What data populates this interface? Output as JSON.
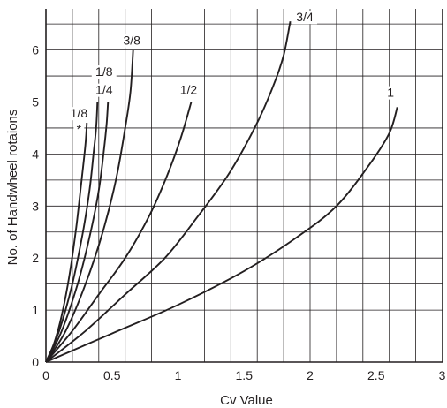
{
  "chart_data": {
    "type": "line",
    "xlabel": "Cv Value",
    "ylabel": "No. of Handwheel rotaions",
    "xlim": [
      0,
      3
    ],
    "ylim": [
      0,
      6.7
    ],
    "x_ticks": [
      "0",
      "0.5",
      "1",
      "1.5",
      "2",
      "2.5",
      "3"
    ],
    "y_ticks": [
      "0",
      "1",
      "2",
      "3",
      "4",
      "5",
      "6"
    ],
    "grid": true,
    "series": [
      {
        "name": "1/8 *",
        "points": [
          [
            0,
            0
          ],
          [
            0.06,
            0.35
          ],
          [
            0.12,
            0.9
          ],
          [
            0.18,
            1.7
          ],
          [
            0.23,
            2.6
          ],
          [
            0.27,
            3.5
          ],
          [
            0.3,
            4.2
          ],
          [
            0.31,
            4.6
          ]
        ]
      },
      {
        "name": "1/8",
        "points": [
          [
            0,
            0
          ],
          [
            0.1,
            0.6
          ],
          [
            0.2,
            1.5
          ],
          [
            0.28,
            2.5
          ],
          [
            0.33,
            3.3
          ],
          [
            0.36,
            4.0
          ],
          [
            0.38,
            4.5
          ],
          [
            0.39,
            5.0
          ]
        ]
      },
      {
        "name": "1/4",
        "points": [
          [
            0,
            0
          ],
          [
            0.12,
            0.6
          ],
          [
            0.24,
            1.5
          ],
          [
            0.33,
            2.4
          ],
          [
            0.4,
            3.3
          ],
          [
            0.44,
            4.1
          ],
          [
            0.46,
            4.6
          ],
          [
            0.47,
            5.0
          ]
        ]
      },
      {
        "name": "3/8",
        "points": [
          [
            0,
            0
          ],
          [
            0.15,
            0.6
          ],
          [
            0.3,
            1.5
          ],
          [
            0.43,
            2.5
          ],
          [
            0.53,
            3.5
          ],
          [
            0.6,
            4.5
          ],
          [
            0.64,
            5.2
          ],
          [
            0.66,
            6.0
          ]
        ]
      },
      {
        "name": "1/2",
        "points": [
          [
            0,
            0
          ],
          [
            0.2,
            0.6
          ],
          [
            0.4,
            1.3
          ],
          [
            0.6,
            2.0
          ],
          [
            0.78,
            2.8
          ],
          [
            0.92,
            3.6
          ],
          [
            1.02,
            4.3
          ],
          [
            1.1,
            5.0
          ]
        ]
      },
      {
        "name": "3/4",
        "points": [
          [
            0,
            0
          ],
          [
            0.3,
            0.6
          ],
          [
            0.6,
            1.3
          ],
          [
            0.9,
            2.0
          ],
          [
            1.15,
            2.8
          ],
          [
            1.38,
            3.6
          ],
          [
            1.58,
            4.5
          ],
          [
            1.72,
            5.3
          ],
          [
            1.8,
            5.9
          ],
          [
            1.85,
            6.55
          ]
        ]
      },
      {
        "name": "1",
        "points": [
          [
            0,
            0
          ],
          [
            0.5,
            0.55
          ],
          [
            1.0,
            1.1
          ],
          [
            1.5,
            1.75
          ],
          [
            1.9,
            2.4
          ],
          [
            2.2,
            3.0
          ],
          [
            2.45,
            3.8
          ],
          [
            2.6,
            4.4
          ],
          [
            2.66,
            4.9
          ]
        ]
      }
    ],
    "labels": [
      {
        "text": "1/8",
        "x": 0.25,
        "y": 4.7
      },
      {
        "text": "*",
        "x": 0.25,
        "y": 4.4
      },
      {
        "text": "1/8",
        "x": 0.44,
        "y": 5.5
      },
      {
        "text": "1/4",
        "x": 0.44,
        "y": 5.15
      },
      {
        "text": "3/8",
        "x": 0.65,
        "y": 6.1
      },
      {
        "text": "1/2",
        "x": 1.08,
        "y": 5.15
      },
      {
        "text": "3/4",
        "x": 1.96,
        "y": 6.55
      },
      {
        "text": "1",
        "x": 2.61,
        "y": 5.1
      }
    ]
  }
}
